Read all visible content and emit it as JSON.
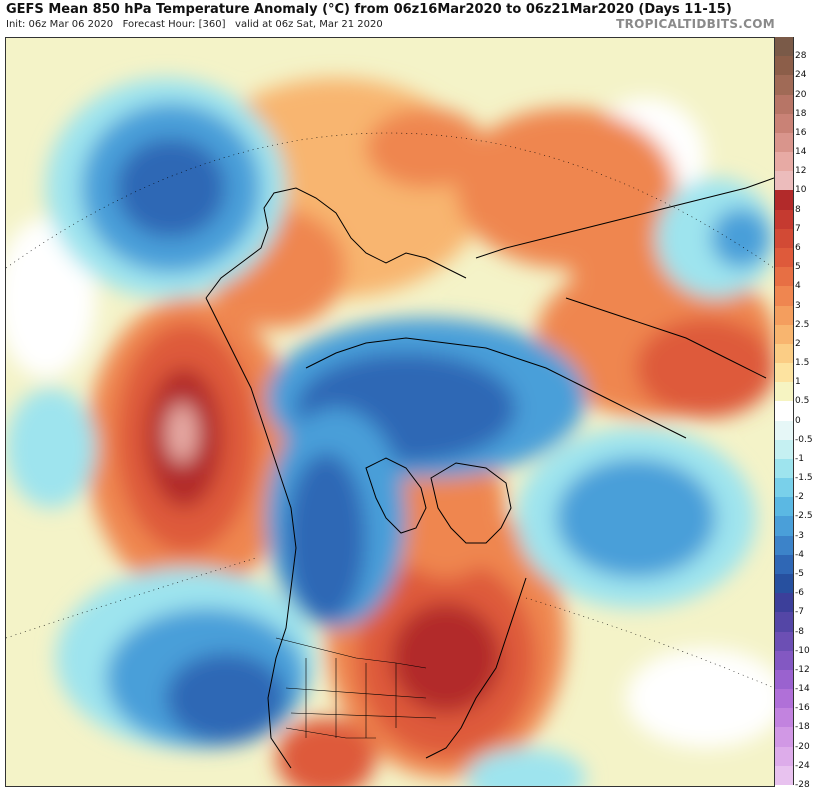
{
  "header": {
    "title": "GEFS Mean 850 hPa Temperature Anomaly (°C) from 06z16Mar2020 to 06z21Mar2020 (Days 11-15)",
    "init": "Init: 06z Mar 06 2020",
    "forecast_hour": "Forecast Hour: [360]",
    "valid": "valid at 06z Sat, Mar 21 2020",
    "brand": "TROPICALTIDBITS.COM"
  },
  "colorbar": {
    "levels": [
      {
        "label": "28",
        "color": "#7a5a48"
      },
      {
        "label": "24",
        "color": "#8c5e49"
      },
      {
        "label": "20",
        "color": "#a06a56"
      },
      {
        "label": "18",
        "color": "#b77566"
      },
      {
        "label": "16",
        "color": "#c98276"
      },
      {
        "label": "14",
        "color": "#d9958c"
      },
      {
        "label": "12",
        "color": "#e7aaa4"
      },
      {
        "label": "10",
        "color": "#ecbcbc"
      },
      {
        "label": "8",
        "color": "#b22a2a"
      },
      {
        "label": "7",
        "color": "#c53a30"
      },
      {
        "label": "6",
        "color": "#d24a35"
      },
      {
        "label": "5",
        "color": "#de5a3b"
      },
      {
        "label": "4",
        "color": "#e76f44"
      },
      {
        "label": "3",
        "color": "#ef8650"
      },
      {
        "label": "2.5",
        "color": "#f49e5e"
      },
      {
        "label": "2",
        "color": "#f8b56f"
      },
      {
        "label": "1.5",
        "color": "#fbcd85"
      },
      {
        "label": "1",
        "color": "#fde3a0"
      },
      {
        "label": "0.5",
        "color": "#f6f4c2"
      },
      {
        "label": "0",
        "color": "#ffffff"
      },
      {
        "label": "-0.5",
        "color": "#e6f7f7"
      },
      {
        "label": "-1",
        "color": "#c5f0f2"
      },
      {
        "label": "-1.5",
        "color": "#9ee4ee"
      },
      {
        "label": "-2",
        "color": "#79d0ea"
      },
      {
        "label": "-2.5",
        "color": "#5bb8e3"
      },
      {
        "label": "-3",
        "color": "#4a9fd9"
      },
      {
        "label": "-4",
        "color": "#3c83c9"
      },
      {
        "label": "-5",
        "color": "#2f67b5"
      },
      {
        "label": "-6",
        "color": "#27509f"
      },
      {
        "label": "-7",
        "color": "#3c3f9a"
      },
      {
        "label": "-8",
        "color": "#5446a6"
      },
      {
        "label": "-10",
        "color": "#6c4fb4"
      },
      {
        "label": "-12",
        "color": "#8358c2"
      },
      {
        "label": "-14",
        "color": "#9a62cf"
      },
      {
        "label": "-16",
        "color": "#b070d8"
      },
      {
        "label": "-18",
        "color": "#c283df"
      },
      {
        "label": "-20",
        "color": "#d198e5"
      },
      {
        "label": "-24",
        "color": "#ddacea"
      },
      {
        "label": "-28",
        "color": "#e8c2ef"
      }
    ]
  },
  "palette": {
    "background": "#f4f3c8",
    "deep_red": "#b22a2a",
    "red": "#de5a3b",
    "orange": "#ef8650",
    "light_orange": "#f8b56f",
    "tan": "#fde3a0",
    "white": "#ffffff",
    "light_blue": "#9ee4ee",
    "mid_blue": "#4a9fd9",
    "blue": "#2f67b5",
    "dark_blue": "#27509f",
    "pink": "#e7aaa4",
    "coast": "#000000"
  }
}
